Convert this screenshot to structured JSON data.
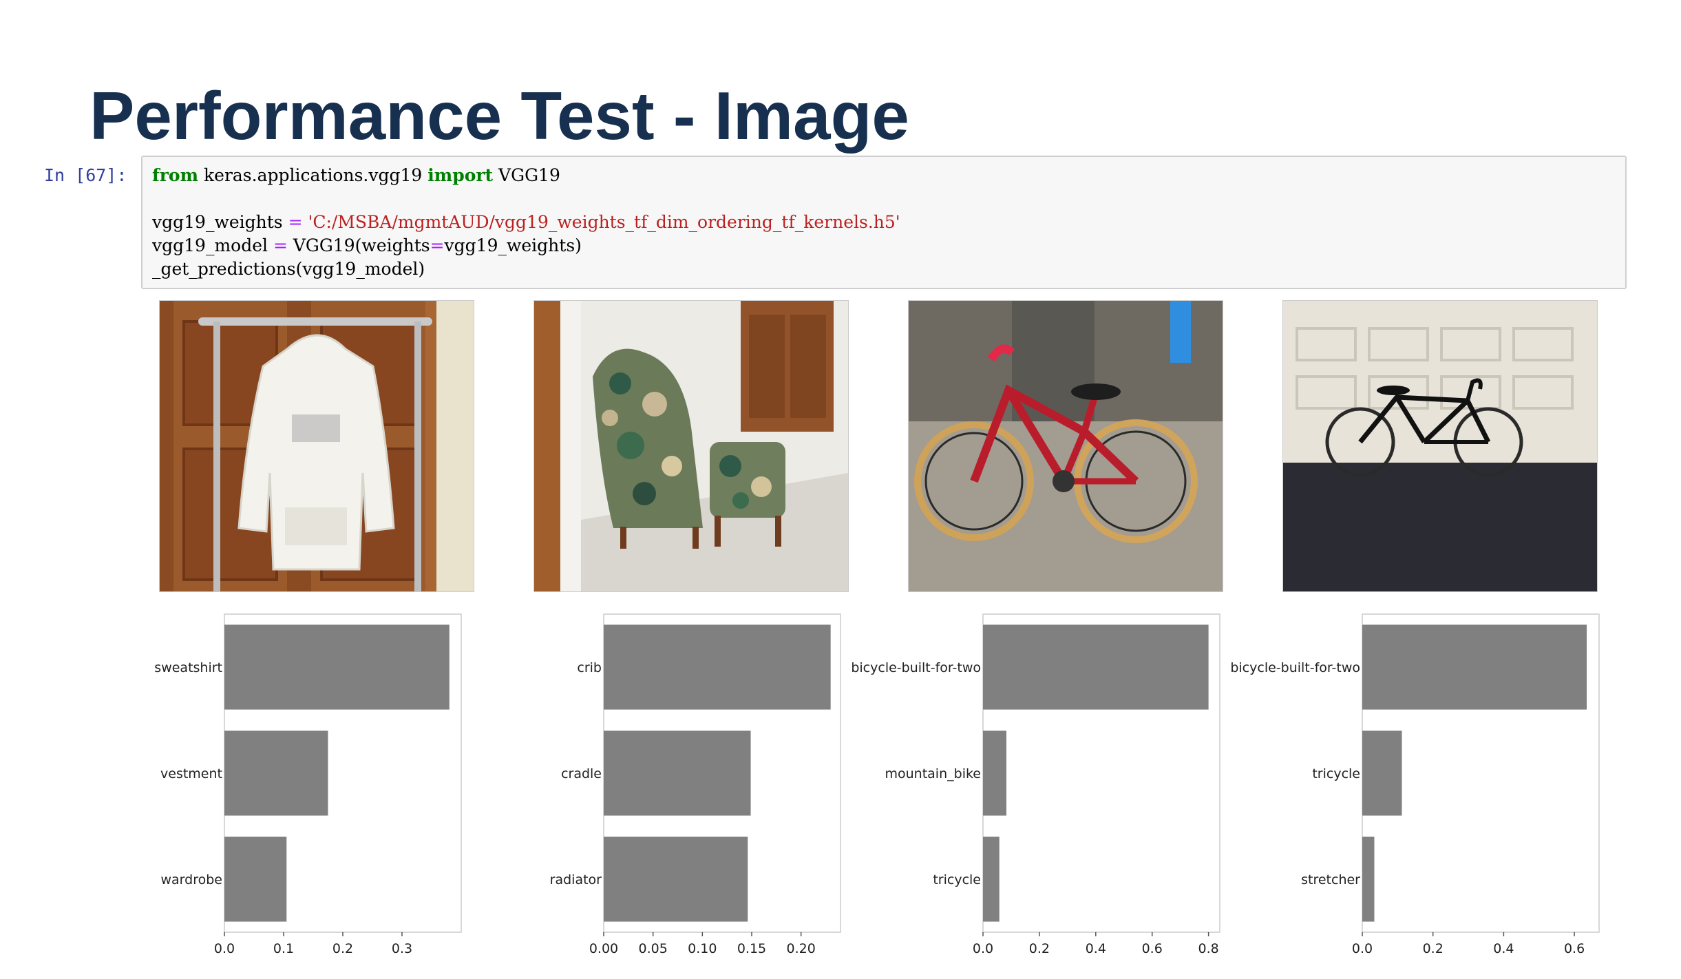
{
  "slide": {
    "title": "Performance Test - Image"
  },
  "notebook": {
    "prompt": "In [67]:",
    "code": {
      "kw_from": "from",
      "module": " keras.applications.vgg19 ",
      "kw_import": "import",
      "class_name": " VGG19",
      "l2_name": "vgg19_weights ",
      "l2_eq": "=",
      "l2_str": " 'C:/MSBA/mgmtAUD/vgg19_weights_tf_dim_ordering_tf_kernels.h5'",
      "l3_name": "vgg19_model ",
      "l3_eq": "=",
      "l3_call": " VGG19(weights",
      "l3_eq2": "=",
      "l3_arg": "vgg19_weights)",
      "l4": "_get_predictions(vgg19_model)"
    }
  },
  "images": [
    {
      "icon": "sweatshirt-on-rack-photo"
    },
    {
      "icon": "armchair-and-ottoman-photo"
    },
    {
      "icon": "red-bicycle-photo"
    },
    {
      "icon": "black-bicycle-photo"
    }
  ],
  "chart_data": [
    {
      "type": "bar",
      "orientation": "horizontal",
      "categories": [
        "sweatshirt",
        "vestment",
        "wardrobe"
      ],
      "values": [
        0.38,
        0.175,
        0.105
      ],
      "xlim": [
        0,
        0.4
      ],
      "xticks": [
        "0.0",
        "0.1",
        "0.2",
        "0.3"
      ],
      "bar_color": "#808080",
      "grid": false
    },
    {
      "type": "bar",
      "orientation": "horizontal",
      "categories": [
        "crib",
        "cradle",
        "radiator"
      ],
      "values": [
        0.23,
        0.149,
        0.146
      ],
      "xlim": [
        0,
        0.24
      ],
      "xticks": [
        "0.00",
        "0.05",
        "0.10",
        "0.15",
        "0.20"
      ],
      "bar_color": "#808080",
      "grid": false
    },
    {
      "type": "bar",
      "orientation": "horizontal",
      "categories": [
        "bicycle-built-for-two",
        "mountain_bike",
        "tricycle"
      ],
      "values": [
        0.8,
        0.083,
        0.058
      ],
      "xlim": [
        0,
        0.84
      ],
      "xticks": [
        "0.0",
        "0.2",
        "0.4",
        "0.6",
        "0.8"
      ],
      "bar_color": "#808080",
      "grid": false
    },
    {
      "type": "bar",
      "orientation": "horizontal",
      "categories": [
        "bicycle-built-for-two",
        "tricycle",
        "stretcher"
      ],
      "values": [
        0.635,
        0.112,
        0.034
      ],
      "xlim": [
        0,
        0.67
      ],
      "xticks": [
        "0.0",
        "0.2",
        "0.4",
        "0.6"
      ],
      "bar_color": "#808080",
      "grid": false
    }
  ]
}
